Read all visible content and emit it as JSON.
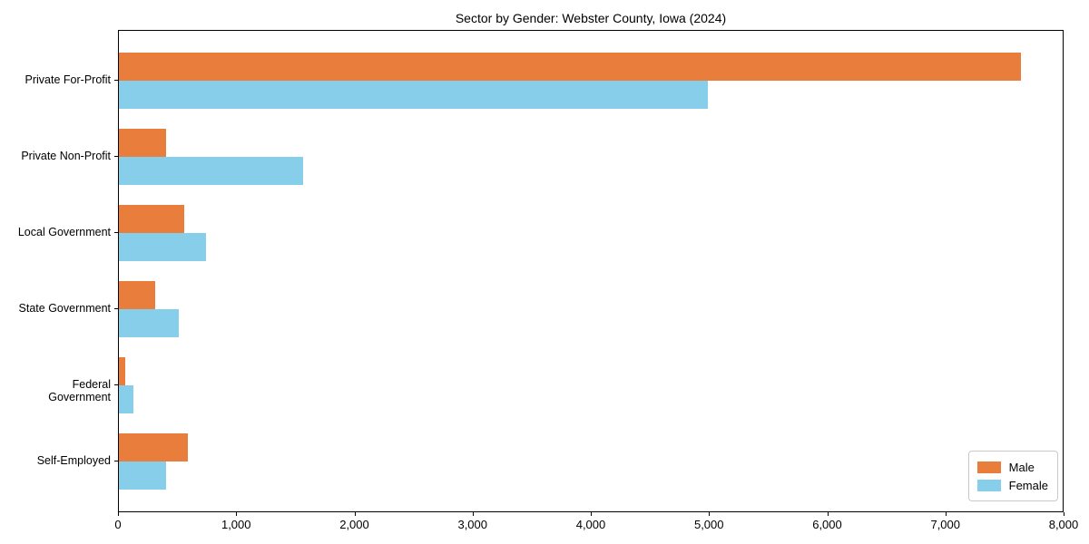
{
  "chart_data": {
    "type": "bar",
    "orientation": "horizontal",
    "title": "Sector by Gender: Webster County, Iowa (2024)",
    "categories": [
      "Private For-Profit",
      "Private Non-Profit",
      "Local Government",
      "State Government",
      "Federal Government",
      "Self-Employed"
    ],
    "series": [
      {
        "name": "Male",
        "color": "#e87d3c",
        "values": [
          7630,
          400,
          550,
          310,
          50,
          580
        ]
      },
      {
        "name": "Female",
        "color": "#87ceeb",
        "values": [
          4980,
          1560,
          740,
          510,
          120,
          400
        ]
      }
    ],
    "xlabel": "",
    "ylabel": "",
    "xlim": [
      0,
      8000
    ],
    "x_ticks": [
      0,
      1000,
      2000,
      3000,
      4000,
      5000,
      6000,
      7000,
      8000
    ],
    "x_tick_labels": [
      "0",
      "1,000",
      "2,000",
      "3,000",
      "4,000",
      "5,000",
      "6,000",
      "7,000",
      "8,000"
    ],
    "grid": false,
    "legend": {
      "position": "lower right"
    }
  }
}
